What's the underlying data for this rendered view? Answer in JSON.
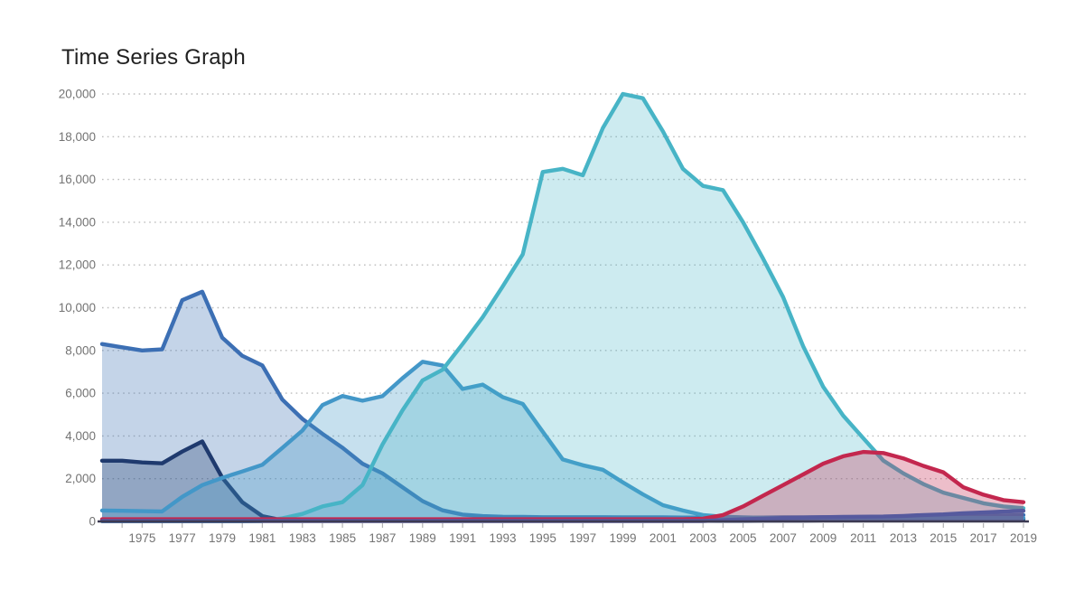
{
  "title": "Time Series Graph",
  "chart_data": {
    "type": "area",
    "title": "Time Series Graph",
    "xlabel": "",
    "ylabel": "",
    "ylim": [
      0,
      20000
    ],
    "yticks": [
      0,
      2000,
      4000,
      6000,
      8000,
      10000,
      12000,
      14000,
      16000,
      18000,
      20000
    ],
    "ytick_labels": [
      "0",
      "2,000",
      "4,000",
      "6,000",
      "8,000",
      "10,000",
      "12,000",
      "14,000",
      "16,000",
      "18,000",
      "20,000"
    ],
    "grid": "horizontal-dotted",
    "legend": "none",
    "x_range": [
      1973,
      2019
    ],
    "x_labeled_ticks": [
      1975,
      1977,
      1979,
      1981,
      1983,
      1985,
      1987,
      1989,
      1991,
      1993,
      1995,
      1997,
      1999,
      2001,
      2003,
      2005,
      2007,
      2009,
      2011,
      2013,
      2015,
      2017,
      2019
    ],
    "x": [
      1973,
      1974,
      1975,
      1976,
      1977,
      1978,
      1979,
      1980,
      1981,
      1982,
      1983,
      1984,
      1985,
      1986,
      1987,
      1988,
      1989,
      1990,
      1991,
      1992,
      1993,
      1994,
      1995,
      1996,
      1997,
      1998,
      1999,
      2000,
      2001,
      2002,
      2003,
      2004,
      2005,
      2006,
      2007,
      2008,
      2009,
      2010,
      2011,
      2012,
      2013,
      2014,
      2015,
      2016,
      2017,
      2018,
      2019
    ],
    "series": [
      {
        "name": "series-royal-blue",
        "color": "#3C6FB4",
        "fill_opacity": 0.3,
        "values": [
          8300,
          8150,
          8000,
          8050,
          10350,
          10750,
          8600,
          7750,
          7300,
          5700,
          4800,
          4100,
          3450,
          2700,
          2250,
          1600,
          950,
          520,
          320,
          250,
          220,
          210,
          200,
          200,
          200,
          200,
          190,
          190,
          190,
          180,
          180,
          180,
          180,
          180,
          190,
          190,
          200,
          200,
          210,
          210,
          220,
          230,
          240,
          250,
          260,
          280,
          300
        ]
      },
      {
        "name": "series-navy",
        "color": "#1F3A6E",
        "fill_opacity": 0.3,
        "values": [
          2840,
          2840,
          2760,
          2720,
          3270,
          3740,
          2050,
          900,
          250,
          60,
          30,
          30,
          30,
          30,
          30,
          30,
          30,
          30,
          30,
          30,
          30,
          30,
          30,
          30,
          30,
          30,
          30,
          30,
          30,
          30,
          30,
          30,
          30,
          40,
          40,
          40,
          50,
          50,
          60,
          60,
          70,
          80,
          80,
          90,
          100,
          100,
          110
        ]
      },
      {
        "name": "series-cerulean",
        "color": "#4397C8",
        "fill_opacity": 0.3,
        "values": [
          510,
          500,
          480,
          470,
          1150,
          1700,
          2040,
          2340,
          2650,
          3440,
          4250,
          5440,
          5870,
          5650,
          5860,
          6700,
          7470,
          7300,
          6200,
          6400,
          5820,
          5500,
          4200,
          2900,
          2630,
          2420,
          1830,
          1270,
          760,
          510,
          300,
          220,
          190,
          170,
          160,
          160,
          160,
          160,
          160,
          160,
          160,
          160,
          160,
          160,
          160,
          160,
          160
        ]
      },
      {
        "name": "series-cyan",
        "color": "#47B4C6",
        "fill_opacity": 0.27,
        "values": [
          10,
          10,
          10,
          10,
          10,
          10,
          10,
          10,
          20,
          150,
          350,
          700,
          900,
          1700,
          3600,
          5200,
          6600,
          7100,
          8300,
          9550,
          11000,
          12500,
          16350,
          16500,
          16200,
          18400,
          20000,
          19800,
          18250,
          16500,
          15700,
          15500,
          14000,
          12300,
          10500,
          8200,
          6300,
          4950,
          3900,
          2850,
          2250,
          1750,
          1350,
          1100,
          850,
          700,
          620
        ]
      },
      {
        "name": "series-crimson",
        "color": "#C3274E",
        "fill_opacity": 0.3,
        "values": [
          100,
          100,
          100,
          100,
          100,
          100,
          100,
          100,
          100,
          100,
          100,
          100,
          100,
          100,
          100,
          100,
          100,
          100,
          100,
          100,
          100,
          100,
          100,
          100,
          100,
          100,
          100,
          100,
          100,
          100,
          130,
          300,
          700,
          1200,
          1700,
          2200,
          2700,
          3050,
          3250,
          3200,
          2950,
          2600,
          2300,
          1600,
          1250,
          1000,
          900
        ]
      },
      {
        "name": "series-slate-purple",
        "color": "#565A9E",
        "fill_opacity": 0.35,
        "values": [
          20,
          20,
          20,
          20,
          20,
          20,
          20,
          20,
          20,
          20,
          20,
          20,
          20,
          20,
          20,
          20,
          20,
          20,
          20,
          20,
          20,
          20,
          20,
          20,
          20,
          20,
          20,
          20,
          20,
          20,
          20,
          60,
          100,
          130,
          160,
          180,
          200,
          210,
          220,
          230,
          260,
          300,
          330,
          380,
          420,
          460,
          500
        ]
      }
    ]
  }
}
